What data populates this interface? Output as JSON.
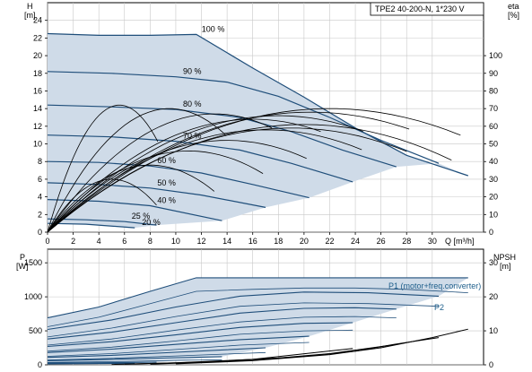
{
  "chart_data": {
    "type": "line",
    "title": "TPE2 40-200-N, 1*230 V",
    "colors": {
      "curve": "#1f4e7a",
      "fill": "#cfdbe8",
      "eta": "#000000",
      "grid": "#c8c8c8"
    },
    "hq": {
      "xlabel": "Q [m³/h]",
      "ylabel_left": "H",
      "ylabel_left_unit": "[m]",
      "ylabel_right": "eta",
      "ylabel_right_unit": "[%]",
      "xlim": [
        0,
        34
      ],
      "ylim": [
        0,
        26
      ],
      "xticks": [
        "0",
        "2",
        "4",
        "6",
        "8",
        "10",
        "12",
        "14",
        "16",
        "18",
        "20",
        "22",
        "24",
        "26",
        "28",
        "30"
      ],
      "yticks_left": [
        "0",
        "2",
        "4",
        "6",
        "8",
        "10",
        "12",
        "14",
        "16",
        "18",
        "20",
        "22",
        "24"
      ],
      "yticks_right": [
        "0",
        "10",
        "20",
        "30",
        "40",
        "50",
        "60",
        "70",
        "80",
        "90",
        "100"
      ],
      "speed_curves": [
        {
          "label": "100 %",
          "points": [
            [
              0,
              22.5
            ],
            [
              4,
              22.3
            ],
            [
              8,
              22.3
            ],
            [
              11.6,
              22.4
            ],
            [
              16,
              18.6
            ],
            [
              20,
              15.3
            ],
            [
              24,
              11.8
            ],
            [
              28,
              8.7
            ],
            [
              32.8,
              6.4
            ]
          ]
        },
        {
          "label": "90 %",
          "points": [
            [
              0,
              18.2
            ],
            [
              5,
              18
            ],
            [
              10,
              17.6
            ],
            [
              14,
              17
            ],
            [
              18,
              15.4
            ],
            [
              22,
              13
            ],
            [
              26,
              10.4
            ],
            [
              30.5,
              7.8
            ]
          ]
        },
        {
          "label": "80 %",
          "points": [
            [
              0,
              14.4
            ],
            [
              5,
              14.2
            ],
            [
              10,
              13.9
            ],
            [
              15,
              13
            ],
            [
              19,
              11.4
            ],
            [
              23,
              9.3
            ],
            [
              27.2,
              7.4
            ]
          ]
        },
        {
          "label": "70 %",
          "points": [
            [
              0,
              11
            ],
            [
              5,
              10.8
            ],
            [
              10,
              10.3
            ],
            [
              15,
              9.3
            ],
            [
              19,
              7.8
            ],
            [
              23.8,
              5.7
            ]
          ]
        },
        {
          "label": "60 %",
          "points": [
            [
              0,
              8
            ],
            [
              4,
              7.9
            ],
            [
              8,
              7.5
            ],
            [
              12,
              6.7
            ],
            [
              16,
              5.4
            ],
            [
              20.4,
              3.9
            ]
          ]
        },
        {
          "label": "50 %",
          "points": [
            [
              0,
              5.6
            ],
            [
              4,
              5.4
            ],
            [
              8,
              5
            ],
            [
              12,
              4.2
            ],
            [
              17,
              2.8
            ]
          ]
        },
        {
          "label": "40 %",
          "points": [
            [
              0,
              3.7
            ],
            [
              4,
              3.5
            ],
            [
              8,
              3
            ],
            [
              13.6,
              1.3
            ]
          ]
        },
        {
          "label": "25 %",
          "points": [
            [
              0,
              1.5
            ],
            [
              3,
              1.4
            ],
            [
              6,
              1.2
            ],
            [
              8.5,
              0.8
            ]
          ]
        },
        {
          "label": "20 %",
          "points": [
            [
              0,
              1
            ],
            [
              3,
              0.9
            ],
            [
              6.8,
              0.5
            ]
          ]
        }
      ],
      "eta_curves": [
        {
          "peak_x": 5.6,
          "peak_eta": 72,
          "end_x": 8.6
        },
        {
          "peak_x": 9.5,
          "peak_eta": 70,
          "end_x": 13.9
        },
        {
          "peak_x": 13,
          "peak_eta": 67,
          "end_x": 17.5
        },
        {
          "peak_x": 16,
          "peak_eta": 64,
          "end_x": 21.3
        },
        {
          "peak_x": 18,
          "peak_eta": 66,
          "end_x": 24.6
        },
        {
          "peak_x": 20.5,
          "peak_eta": 68,
          "end_x": 28.2
        },
        {
          "peak_x": 22,
          "peak_eta": 70,
          "end_x": 32.2
        },
        {
          "peak_x": 20,
          "peak_eta": 61,
          "end_x": 31.5
        },
        {
          "peak_x": 19,
          "peak_eta": 59,
          "end_x": 28
        },
        {
          "peak_x": 17,
          "peak_eta": 58,
          "end_x": 24.5
        },
        {
          "peak_x": 14,
          "peak_eta": 52,
          "end_x": 20.2
        },
        {
          "peak_x": 11,
          "peak_eta": 46,
          "end_x": 16.8
        },
        {
          "peak_x": 8,
          "peak_eta": 38,
          "end_x": 13
        },
        {
          "peak_x": 5,
          "peak_eta": 30,
          "end_x": 8.5
        }
      ]
    },
    "power": {
      "ylabel_left": "P",
      "ylabel_left_unit": "[W]",
      "ylabel_right": "NPSH",
      "ylabel_right_unit": "[m]",
      "xlim": [
        0,
        34
      ],
      "ylim": [
        0,
        1700
      ],
      "ylim_right": [
        0,
        34
      ],
      "yticks_left": [
        "0",
        "500",
        "1000",
        "1500"
      ],
      "yticks_right": [
        "0",
        "10",
        "20",
        "30"
      ],
      "legend": [
        "P1 (motor+freq.converter)",
        "P2"
      ],
      "p1_curves": [
        {
          "points": [
            [
              0,
              690
            ],
            [
              4,
              850
            ],
            [
              8,
              1080
            ],
            [
              11.6,
              1280
            ],
            [
              16,
              1280
            ],
            [
              20,
              1280
            ],
            [
              24,
              1280
            ],
            [
              28,
              1280
            ],
            [
              32.8,
              1280
            ]
          ]
        },
        {
          "points": [
            [
              0,
              520
            ],
            [
              5,
              660
            ],
            [
              10,
              850
            ],
            [
              15,
              1010
            ],
            [
              20,
              1070
            ],
            [
              25,
              1060
            ],
            [
              30.5,
              1010
            ]
          ]
        },
        {
          "points": [
            [
              0,
              380
            ],
            [
              5,
              480
            ],
            [
              10,
              620
            ],
            [
              15,
              760
            ],
            [
              20,
              830
            ],
            [
              24,
              840
            ],
            [
              27.2,
              820
            ]
          ]
        },
        {
          "points": [
            [
              0,
              270
            ],
            [
              5,
              340
            ],
            [
              10,
              440
            ],
            [
              15,
              550
            ],
            [
              20,
              610
            ],
            [
              23.8,
              620
            ]
          ]
        },
        {
          "points": [
            [
              0,
              180
            ],
            [
              5,
              230
            ],
            [
              10,
              300
            ],
            [
              15,
              370
            ],
            [
              20.4,
              420
            ]
          ]
        },
        {
          "points": [
            [
              0,
              110
            ],
            [
              5,
              140
            ],
            [
              10,
              185
            ],
            [
              17,
              250
            ]
          ]
        },
        {
          "points": [
            [
              0,
              60
            ],
            [
              5,
              80
            ],
            [
              10,
              105
            ],
            [
              13.6,
              120
            ]
          ]
        },
        {
          "points": [
            [
              0,
              25
            ],
            [
              4,
              30
            ],
            [
              8.5,
              38
            ]
          ]
        },
        {
          "points": [
            [
              0,
              15
            ],
            [
              4,
              18
            ],
            [
              6.8,
              22
            ]
          ]
        }
      ],
      "p2_curves": [
        {
          "points": [
            [
              0,
              560
            ],
            [
              4,
              700
            ],
            [
              8,
              900
            ],
            [
              11.6,
              1080
            ],
            [
              16,
              1110
            ],
            [
              20,
              1130
            ],
            [
              24,
              1130
            ],
            [
              28,
              1110
            ],
            [
              32.8,
              1060
            ]
          ]
        },
        {
          "points": [
            [
              0,
              410
            ],
            [
              5,
              540
            ],
            [
              10,
              710
            ],
            [
              15,
              860
            ],
            [
              20,
              910
            ],
            [
              25,
              900
            ],
            [
              30.5,
              860
            ]
          ]
        },
        {
          "points": [
            [
              0,
              290
            ],
            [
              5,
              380
            ],
            [
              10,
              510
            ],
            [
              15,
              630
            ],
            [
              20,
              700
            ],
            [
              24,
              710
            ],
            [
              27.2,
              690
            ]
          ]
        },
        {
          "points": [
            [
              0,
              200
            ],
            [
              5,
              260
            ],
            [
              10,
              350
            ],
            [
              15,
              450
            ],
            [
              20,
              500
            ],
            [
              23.8,
              510
            ]
          ]
        },
        {
          "points": [
            [
              0,
              125
            ],
            [
              5,
              165
            ],
            [
              10,
              225
            ],
            [
              15,
              290
            ],
            [
              20.4,
              330
            ]
          ]
        },
        {
          "points": [
            [
              0,
              70
            ],
            [
              5,
              95
            ],
            [
              10,
              130
            ],
            [
              17,
              180
            ]
          ]
        },
        {
          "points": [
            [
              0,
              35
            ],
            [
              5,
              48
            ],
            [
              10,
              65
            ],
            [
              13.6,
              75
            ]
          ]
        }
      ],
      "npsh_curves": [
        {
          "points": [
            [
              10,
              0.3
            ],
            [
              16,
              1.2
            ],
            [
              22,
              3
            ],
            [
              26,
              5
            ],
            [
              30,
              8
            ],
            [
              32.8,
              10.5
            ]
          ]
        },
        {
          "points": [
            [
              8,
              0.2
            ],
            [
              14,
              1
            ],
            [
              20,
              2.5
            ],
            [
              24,
              4
            ],
            [
              27,
              6
            ],
            [
              30.5,
              8
            ]
          ]
        },
        {
          "points": [
            [
              6,
              0.2
            ],
            [
              12,
              0.8
            ],
            [
              18,
              2
            ],
            [
              22,
              3.3
            ],
            [
              27.2,
              6
            ]
          ]
        },
        {
          "points": [
            [
              5,
              0.1
            ],
            [
              10,
              0.6
            ],
            [
              16,
              1.6
            ],
            [
              23.8,
              4.8
            ]
          ]
        }
      ]
    }
  }
}
